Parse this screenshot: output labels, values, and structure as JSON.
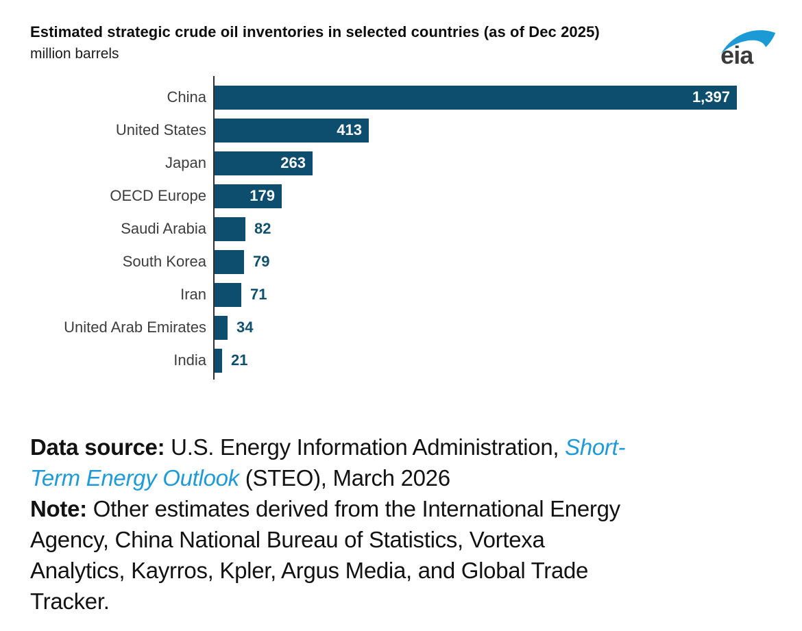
{
  "page": {
    "title": "Estimated strategic crude oil inventories in selected countries (as of Dec 2025)",
    "subtitle": "million barrels"
  },
  "logo": {
    "text": "eia",
    "swoosh_color": "#1c9ad6",
    "text_color": "#3b3b3b"
  },
  "chart_data": {
    "type": "bar",
    "orientation": "horizontal",
    "title": "Estimated strategic crude oil inventories in selected countries (as of Dec 2025)",
    "unit_label": "million barrels",
    "categories": [
      "China",
      "United States",
      "Japan",
      "OECD Europe",
      "Saudi Arabia",
      "South Korea",
      "Iran",
      "United Arab Emirates",
      "India"
    ],
    "values": [
      1397,
      413,
      263,
      179,
      82,
      79,
      71,
      34,
      21
    ],
    "value_labels": [
      "1,397",
      "413",
      "263",
      "179",
      "82",
      "79",
      "71",
      "34",
      "21"
    ],
    "xlim": [
      0,
      1397
    ],
    "grid": false,
    "legend": false,
    "bar_color": "#0d4d6d",
    "value_color_inside": "#ffffff",
    "value_color_outside": "#0f506f",
    "axis_color": "#2e2e2e",
    "label_color": "#3d3d3d"
  },
  "footer": {
    "link_color": "#1f9ad6",
    "lines": [
      [
        {
          "t": "Data source:",
          "b": true
        },
        {
          "t": " U.S. Energy Information Administration, "
        },
        {
          "t": "Short-",
          "link": true
        }
      ],
      [
        {
          "t": "Term Energy Outlook",
          "link": true
        },
        {
          "t": " (STEO), March 2026"
        }
      ],
      [
        {
          "t": "Note:",
          "b": true
        },
        {
          "t": " Other estimates derived from the International Energy"
        }
      ],
      [
        {
          "t": "Agency, China National Bureau of Statistics, Vortexa"
        }
      ],
      [
        {
          "t": "Analytics, Kayrros, Kpler, Argus Media, and Global Trade"
        }
      ],
      [
        {
          "t": "Tracker."
        }
      ]
    ]
  }
}
